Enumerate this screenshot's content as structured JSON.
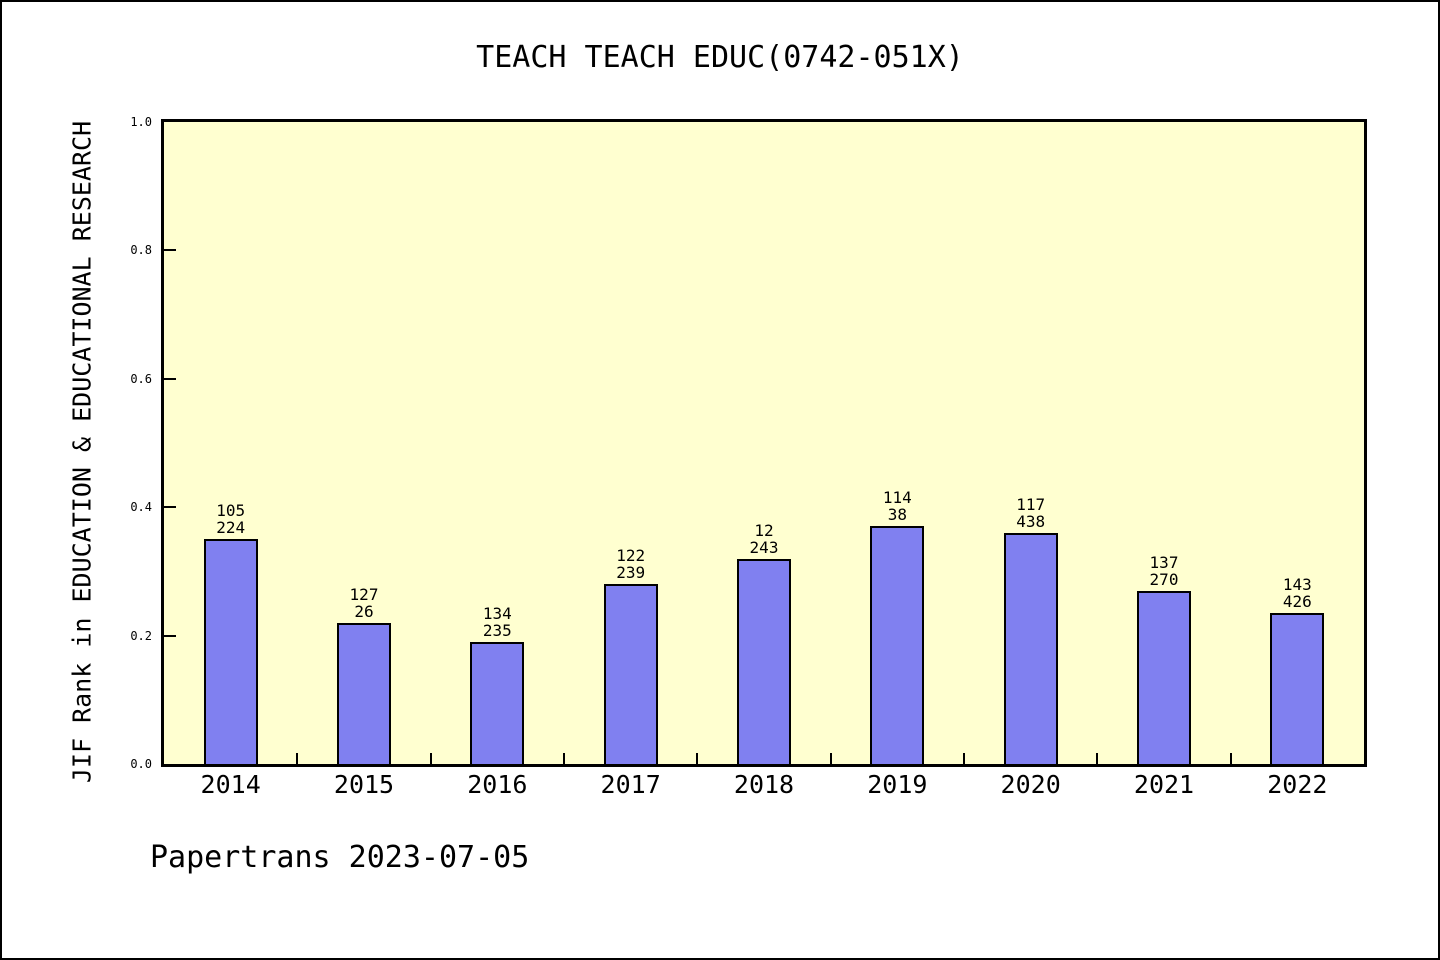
{
  "page": {
    "background": "#ffffff",
    "frame_color": "#000000"
  },
  "chart_data": {
    "type": "bar",
    "title": "TEACH TEACH EDUC(0742-051X)",
    "ylabel": "JIF Rank in EDUCATION & EDUCATIONAL RESEARCH",
    "xlabel": "",
    "caption": "Papertrans 2023-07-05",
    "categories": [
      "2014",
      "2015",
      "2016",
      "2017",
      "2018",
      "2019",
      "2020",
      "2021",
      "2022"
    ],
    "values": [
      0.35,
      0.22,
      0.19,
      0.28,
      0.32,
      0.37,
      0.36,
      0.27,
      0.235
    ],
    "bar_labels": [
      [
        "105",
        "224"
      ],
      [
        "127",
        "26"
      ],
      [
        "134",
        "235"
      ],
      [
        "122",
        "239"
      ],
      [
        "12",
        "243"
      ],
      [
        "114",
        "38"
      ],
      [
        "117",
        "438"
      ],
      [
        "137",
        "270"
      ],
      [
        "143",
        "426"
      ]
    ],
    "ylim": [
      0.0,
      1.0
    ],
    "yticks": [
      0.0,
      0.2,
      0.4,
      0.6,
      0.8,
      1.0
    ],
    "grid": false,
    "legend": "none",
    "colors": {
      "bar_fill": "#8080f0",
      "bar_border": "#000000",
      "plot_bg": "#ffffd0",
      "axis": "#000000",
      "text": "#000000"
    }
  }
}
